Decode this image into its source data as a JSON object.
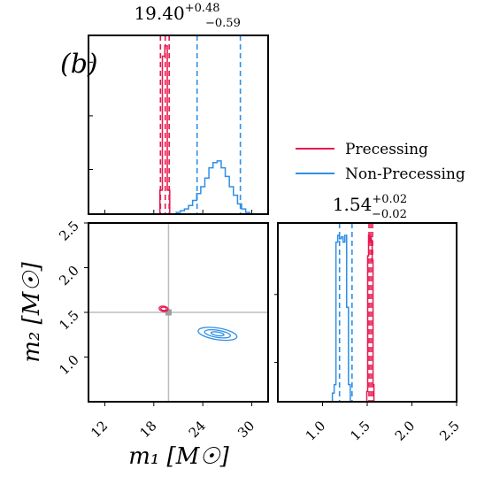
{
  "figure": {
    "panel_label": "(b)",
    "colors": {
      "precessing": "#e8174f",
      "non_precessing": "#2e8fe6",
      "reference": "#bdbdbd",
      "frame": "#000000"
    }
  },
  "chart_data": [
    {
      "panel": "m1-marginal",
      "type": "histogram",
      "title": {
        "median": "19.40",
        "plus": "+0.48",
        "minus": "−0.59"
      },
      "xlim": [
        10,
        32
      ],
      "ylim": [
        0,
        1
      ],
      "series": [
        {
          "name": "Precessing",
          "color": "#e8174f",
          "bins": [
            [
              18.6,
              0.0
            ],
            [
              18.9,
              0.14
            ],
            [
              19.2,
              0.92
            ],
            [
              19.5,
              0.98
            ],
            [
              19.8,
              0.14
            ],
            [
              20.1,
              0.0
            ]
          ],
          "bin_width": 0.3,
          "quantiles": [
            18.81,
            19.4,
            19.88
          ]
        },
        {
          "name": "Non-Precessing",
          "color": "#2e8fe6",
          "bins": [
            [
              20.6,
              0.0
            ],
            [
              21.0,
              0.01
            ],
            [
              21.5,
              0.02
            ],
            [
              22.0,
              0.03
            ],
            [
              22.5,
              0.05
            ],
            [
              23.0,
              0.08
            ],
            [
              23.5,
              0.12
            ],
            [
              24.0,
              0.16
            ],
            [
              24.5,
              0.21
            ],
            [
              25.0,
              0.27
            ],
            [
              25.5,
              0.3
            ],
            [
              26.0,
              0.31
            ],
            [
              26.5,
              0.27
            ],
            [
              27.0,
              0.22
            ],
            [
              27.5,
              0.16
            ],
            [
              28.0,
              0.11
            ],
            [
              28.5,
              0.06
            ],
            [
              29.0,
              0.03
            ],
            [
              29.5,
              0.01
            ],
            [
              30.0,
              0.0
            ]
          ],
          "bin_width": 0.5,
          "quantiles": [
            23.3,
            28.6
          ]
        }
      ]
    },
    {
      "panel": "m2-marginal",
      "type": "histogram",
      "title": {
        "median": "1.54",
        "plus": "+0.02",
        "minus": "−0.02"
      },
      "xlim": [
        0.5,
        2.5
      ],
      "xticks": [
        "1.0",
        "1.5",
        "2.0",
        "2.5"
      ],
      "ylim": [
        0,
        1
      ],
      "series": [
        {
          "name": "Precessing",
          "color": "#e8174f",
          "bins": [
            [
              1.49,
              0.0
            ],
            [
              1.5,
              0.06
            ],
            [
              1.51,
              0.85
            ],
            [
              1.52,
              0.97
            ],
            [
              1.53,
              0.93
            ],
            [
              1.54,
              0.96
            ],
            [
              1.55,
              0.94
            ],
            [
              1.56,
              0.82
            ],
            [
              1.57,
              0.1
            ],
            [
              1.58,
              0.0
            ]
          ],
          "bin_width": 0.01,
          "quantiles": [
            1.52,
            1.54,
            1.56
          ]
        },
        {
          "name": "Non-Precessing",
          "color": "#2e8fe6",
          "bins": [
            [
              1.1,
              0.0
            ],
            [
              1.12,
              0.05
            ],
            [
              1.14,
              0.1
            ],
            [
              1.16,
              0.93
            ],
            [
              1.18,
              0.97
            ],
            [
              1.2,
              0.95
            ],
            [
              1.22,
              0.96
            ],
            [
              1.24,
              0.93
            ],
            [
              1.26,
              0.97
            ],
            [
              1.28,
              0.55
            ],
            [
              1.3,
              0.1
            ],
            [
              1.32,
              0.0
            ]
          ],
          "bin_width": 0.02,
          "quantiles": [
            1.19,
            1.33
          ]
        }
      ]
    },
    {
      "panel": "m1-m2-joint",
      "type": "scatter",
      "xlabel": "m₁ [M☉]",
      "ylabel": "m₂ [M☉]",
      "xlim": [
        10,
        32
      ],
      "ylim": [
        0.5,
        2.5
      ],
      "xticks": [
        "12",
        "18",
        "24",
        "30"
      ],
      "yticks": [
        "1.0",
        "1.5",
        "2.0",
        "2.5"
      ],
      "reference": {
        "x": 19.8,
        "y": 1.5
      },
      "series": [
        {
          "name": "Precessing",
          "color": "#e8174f",
          "contours": [
            {
              "cx": 19.2,
              "cy": 1.54,
              "rx": 0.55,
              "ry": 0.03
            },
            {
              "cx": 19.2,
              "cy": 1.54,
              "rx": 0.35,
              "ry": 0.018
            }
          ]
        },
        {
          "name": "Non-Precessing",
          "color": "#2e8fe6",
          "contours": [
            {
              "cx": 25.8,
              "cy": 1.26,
              "rx": 2.4,
              "ry": 0.065
            },
            {
              "cx": 25.8,
              "cy": 1.26,
              "rx": 1.6,
              "ry": 0.04
            },
            {
              "cx": 25.8,
              "cy": 1.26,
              "rx": 0.8,
              "ry": 0.02
            }
          ]
        }
      ]
    }
  ],
  "legend": {
    "placement": "right-middle",
    "entries": [
      {
        "label": "Precessing",
        "color": "#e8174f"
      },
      {
        "label": "Non-Precessing",
        "color": "#2e8fe6"
      }
    ]
  }
}
